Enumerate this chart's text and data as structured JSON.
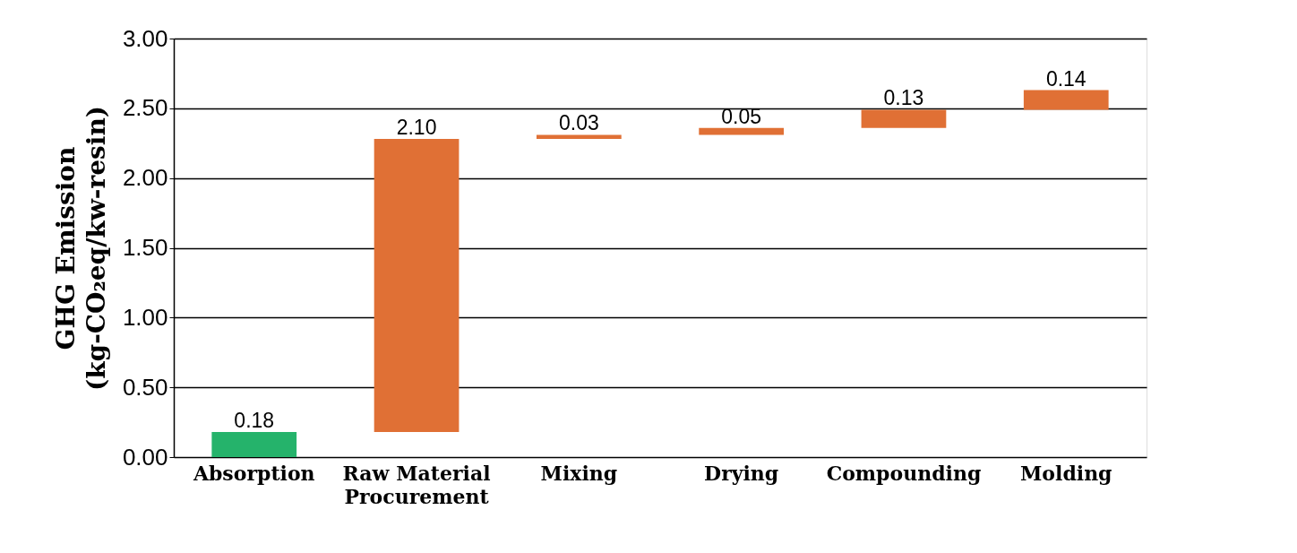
{
  "chart_data": {
    "type": "bar",
    "ylabel": "GHG Emission\n(kg-CO₂eq/kw-resin)",
    "categories": [
      "Absorption",
      "Raw Material Procurement",
      "Mixing",
      "Drying",
      "Compounding",
      "Molding"
    ],
    "values": [
      0.18,
      2.1,
      0.03,
      0.05,
      0.13,
      0.14
    ],
    "base": [
      0,
      0.18,
      2.28,
      2.31,
      2.36,
      2.49
    ],
    "colors": [
      "#25b36b",
      "#e07035",
      "#e07035",
      "#e07035",
      "#e07035",
      "#e07035"
    ],
    "value_labels": [
      "0.18",
      "2.10",
      "0.03",
      "0.05",
      "0.13",
      "0.14"
    ],
    "ylim": [
      0,
      3
    ],
    "yticks": [
      {
        "value": 0,
        "label": "0.00"
      },
      {
        "value": 0.5,
        "label": "0.50"
      },
      {
        "value": 1,
        "label": "1.00"
      },
      {
        "value": 1.5,
        "label": "1.50"
      },
      {
        "value": 2,
        "label": "2.00"
      },
      {
        "value": 2.5,
        "label": "2.50"
      },
      {
        "value": 3,
        "label": "3.00"
      }
    ],
    "grid": "y"
  }
}
